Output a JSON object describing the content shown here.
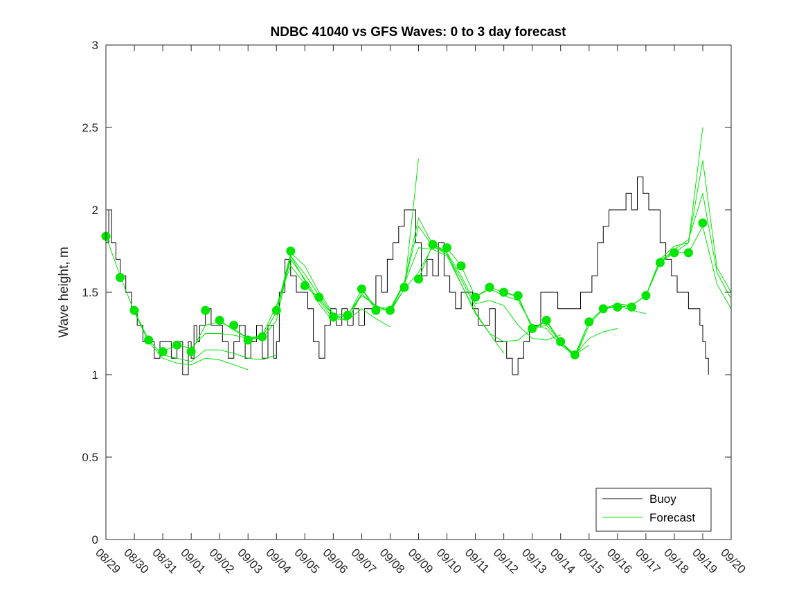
{
  "chart_data": {
    "type": "line",
    "title": "NDBC 41040 vs GFS Waves: 0 to 3 day forecast",
    "xlabel": "",
    "ylabel": "Wave height, m",
    "xlim": [
      0,
      22
    ],
    "ylim": [
      0,
      3
    ],
    "yticks": [
      0,
      0.5,
      1,
      1.5,
      2,
      2.5,
      3
    ],
    "ytick_labels": [
      "0",
      "0.5",
      "1",
      "1.5",
      "2",
      "2.5",
      "3"
    ],
    "xtick_labels": [
      "08/29",
      "08/30",
      "08/31",
      "09/01",
      "09/02",
      "09/03",
      "09/04",
      "09/05",
      "09/06",
      "09/07",
      "09/08",
      "09/09",
      "09/10",
      "09/11",
      "09/12",
      "09/13",
      "09/14",
      "09/15",
      "09/16",
      "09/17",
      "09/18",
      "09/19",
      "09/20"
    ],
    "grid": false,
    "legend": {
      "position": "bottom-right",
      "entries": [
        {
          "label": "Buoy",
          "color": "#000000"
        },
        {
          "label": "Forecast",
          "color": "#00e600"
        }
      ]
    },
    "colors": {
      "buoy": "#000000",
      "forecast": "#00e600"
    },
    "buoy": {
      "t": [
        0,
        0.1,
        0.2,
        0.35,
        0.5,
        0.7,
        0.9,
        1.1,
        1.3,
        1.5,
        1.7,
        1.9,
        2.1,
        2.3,
        2.5,
        2.7,
        2.9,
        3.0,
        3.1,
        3.2,
        3.3,
        3.5,
        3.7,
        3.9,
        4.1,
        4.3,
        4.5,
        4.7,
        4.9,
        5.1,
        5.3,
        5.5,
        5.7,
        5.9,
        6.0,
        6.1,
        6.3,
        6.5,
        6.7,
        6.9,
        7.1,
        7.3,
        7.5,
        7.7,
        7.9,
        8.1,
        8.3,
        8.5,
        8.7,
        8.9,
        9.1,
        9.3,
        9.5,
        9.7,
        9.9,
        10.1,
        10.3,
        10.5,
        10.7,
        10.9,
        11.1,
        11.3,
        11.5,
        11.7,
        11.9,
        12.1,
        12.3,
        12.5,
        12.7,
        12.9,
        13.1,
        13.3,
        13.5,
        13.7,
        13.9,
        14.1,
        14.3,
        14.5,
        14.7,
        14.9,
        15.1,
        15.3,
        15.5,
        15.7,
        15.9,
        16.1,
        16.3,
        16.5,
        16.7,
        16.9,
        17.1,
        17.3,
        17.5,
        17.7,
        17.9,
        18.1,
        18.3,
        18.5,
        18.7,
        18.9,
        19.1,
        19.3,
        19.5,
        19.7,
        19.9,
        20.1,
        20.3,
        20.5,
        20.7,
        20.9,
        21.0,
        21.1,
        21.2
      ],
      "h": [
        1.8,
        2.0,
        1.8,
        1.7,
        1.6,
        1.5,
        1.4,
        1.3,
        1.2,
        1.2,
        1.1,
        1.2,
        1.2,
        1.1,
        1.2,
        1.0,
        1.2,
        1.1,
        1.3,
        1.2,
        1.3,
        1.4,
        1.3,
        1.3,
        1.2,
        1.1,
        1.2,
        1.3,
        1.1,
        1.2,
        1.3,
        1.1,
        1.3,
        1.1,
        1.2,
        1.5,
        1.7,
        1.6,
        1.5,
        1.5,
        1.4,
        1.2,
        1.1,
        1.3,
        1.4,
        1.3,
        1.4,
        1.3,
        1.4,
        1.3,
        1.4,
        1.4,
        1.6,
        1.5,
        1.7,
        1.8,
        1.9,
        2.0,
        2.0,
        1.8,
        1.6,
        1.7,
        1.6,
        1.8,
        1.6,
        1.5,
        1.4,
        1.5,
        1.5,
        1.4,
        1.3,
        1.3,
        1.4,
        1.2,
        1.2,
        1.1,
        1.0,
        1.1,
        1.2,
        1.3,
        1.3,
        1.5,
        1.5,
        1.5,
        1.4,
        1.4,
        1.4,
        1.4,
        1.5,
        1.5,
        1.6,
        1.8,
        1.9,
        2.0,
        2.0,
        2.0,
        2.1,
        2.0,
        2.2,
        2.1,
        2.0,
        2.0,
        1.8,
        1.7,
        1.6,
        1.5,
        1.5,
        1.4,
        1.4,
        1.3,
        1.2,
        1.1,
        1.0
      ]
    },
    "forecast_markers": {
      "t": [
        0,
        0.5,
        1,
        1.5,
        2,
        2.5,
        3,
        3.5,
        4,
        4.5,
        5,
        5.5,
        6,
        6.5,
        7,
        7.5,
        8,
        8.5,
        9,
        9.5,
        10,
        10.5,
        11,
        11.5,
        12,
        12.5,
        13,
        13.5,
        14,
        14.5,
        15,
        15.5,
        16,
        16.5,
        17,
        17.5,
        18,
        18.5,
        19,
        19.5,
        20,
        20.5,
        21
      ],
      "h": [
        1.84,
        1.59,
        1.39,
        1.21,
        1.14,
        1.18,
        1.14,
        1.39,
        1.33,
        1.3,
        1.21,
        1.23,
        1.39,
        1.75,
        1.54,
        1.47,
        1.35,
        1.36,
        1.52,
        1.39,
        1.39,
        1.53,
        1.58,
        1.79,
        1.77,
        1.66,
        1.47,
        1.53,
        1.5,
        1.48,
        1.28,
        1.33,
        1.2,
        1.12,
        1.32,
        1.4,
        1.41,
        1.41,
        1.48,
        1.68,
        1.74,
        1.74,
        1.92
      ]
    },
    "forecast_runs": [
      {
        "t": [
          0,
          0.5,
          1,
          1.5,
          2,
          2.5,
          3,
          3.5,
          4,
          4.5,
          5
        ],
        "h": [
          1.84,
          1.6,
          1.38,
          1.2,
          1.1,
          1.07,
          1.06,
          1.1,
          1.09,
          1.06,
          1.03
        ]
      },
      {
        "t": [
          1,
          1.5,
          2,
          2.5,
          3,
          3.5,
          4,
          4.5,
          5,
          5.5,
          6
        ],
        "h": [
          1.39,
          1.21,
          1.12,
          1.1,
          1.08,
          1.15,
          1.15,
          1.13,
          1.1,
          1.09,
          1.12
        ]
      },
      {
        "t": [
          2,
          2.5,
          3,
          3.5,
          4,
          4.5,
          5,
          5.5,
          6,
          6.5,
          7
        ],
        "h": [
          1.14,
          1.18,
          1.16,
          1.25,
          1.25,
          1.24,
          1.22,
          1.24,
          1.42,
          1.66,
          1.55
        ]
      },
      {
        "t": [
          3,
          3.5,
          4,
          4.5,
          5,
          5.5,
          6,
          6.5,
          7,
          7.5,
          8
        ],
        "h": [
          1.14,
          1.3,
          1.32,
          1.28,
          1.22,
          1.22,
          1.33,
          1.72,
          1.57,
          1.43,
          1.32
        ]
      },
      {
        "t": [
          4,
          4.5,
          5,
          5.5,
          6,
          6.5,
          7,
          7.5,
          8,
          8.5,
          9
        ],
        "h": [
          1.33,
          1.27,
          1.22,
          1.23,
          1.38,
          1.7,
          1.58,
          1.45,
          1.34,
          1.33,
          1.49
        ]
      },
      {
        "t": [
          5,
          5.5,
          6,
          6.5,
          7,
          7.5,
          8,
          8.5,
          9,
          9.5,
          10
        ],
        "h": [
          1.21,
          1.23,
          1.38,
          1.72,
          1.61,
          1.48,
          1.36,
          1.33,
          1.4,
          1.34,
          1.29
        ]
      },
      {
        "t": [
          6,
          6.5,
          7,
          7.5,
          8,
          8.5,
          9,
          9.5,
          10,
          10.5,
          11
        ],
        "h": [
          1.39,
          1.74,
          1.66,
          1.5,
          1.37,
          1.36,
          1.48,
          1.42,
          1.38,
          1.52,
          2.31
        ]
      },
      {
        "t": [
          7,
          7.5,
          8,
          8.5,
          9,
          9.5,
          10,
          10.5,
          11,
          11.5,
          12
        ],
        "h": [
          1.54,
          1.46,
          1.36,
          1.35,
          1.52,
          1.41,
          1.4,
          1.56,
          1.95,
          1.79,
          1.75
        ]
      },
      {
        "t": [
          8,
          8.5,
          9,
          9.5,
          10,
          10.5,
          11,
          11.5,
          12,
          12.5,
          13
        ],
        "h": [
          1.35,
          1.36,
          1.49,
          1.41,
          1.39,
          1.55,
          1.9,
          1.78,
          1.73,
          1.58,
          1.41
        ]
      },
      {
        "t": [
          9,
          9.5,
          10,
          10.5,
          11,
          11.5,
          12,
          12.5,
          13,
          13.5,
          14
        ],
        "h": [
          1.52,
          1.39,
          1.4,
          1.55,
          1.77,
          1.76,
          1.72,
          1.55,
          1.37,
          1.25,
          1.13
        ]
      },
      {
        "t": [
          10,
          10.5,
          11,
          11.5,
          12,
          12.5,
          13,
          13.5,
          14,
          14.5,
          15
        ],
        "h": [
          1.39,
          1.52,
          1.62,
          1.78,
          1.74,
          1.55,
          1.38,
          1.25,
          1.2,
          1.21,
          1.28
        ]
      },
      {
        "t": [
          11,
          11.5,
          12,
          12.5,
          13,
          13.5,
          14,
          14.5,
          15,
          15.5,
          16
        ],
        "h": [
          1.58,
          1.79,
          1.74,
          1.6,
          1.43,
          1.45,
          1.42,
          1.3,
          1.22,
          1.21,
          1.24
        ]
      },
      {
        "t": [
          12,
          12.5,
          13,
          13.5,
          14,
          14.5,
          15,
          15.5,
          16,
          16.5,
          17
        ],
        "h": [
          1.77,
          1.66,
          1.47,
          1.52,
          1.48,
          1.45,
          1.3,
          1.28,
          1.18,
          1.12,
          1.18
        ]
      },
      {
        "t": [
          13,
          13.5,
          14,
          14.5,
          15,
          15.5,
          16,
          16.5,
          17,
          17.5,
          18
        ],
        "h": [
          1.47,
          1.53,
          1.5,
          1.47,
          1.28,
          1.3,
          1.2,
          1.12,
          1.22,
          1.26,
          1.28
        ]
      },
      {
        "t": [
          14,
          14.5,
          15,
          15.5,
          16,
          16.5,
          17,
          17.5,
          18,
          18.5,
          19
        ],
        "h": [
          1.5,
          1.48,
          1.28,
          1.32,
          1.2,
          1.1,
          1.3,
          1.4,
          1.42,
          1.39,
          1.37
        ]
      },
      {
        "t": [
          15,
          15.5,
          16,
          16.5,
          17,
          17.5,
          18,
          18.5,
          19,
          19.5,
          20
        ],
        "h": [
          1.28,
          1.33,
          1.2,
          1.11,
          1.32,
          1.4,
          1.41,
          1.42,
          1.48,
          1.68,
          1.76
        ]
      },
      {
        "t": [
          16,
          16.5,
          17,
          17.5,
          18,
          18.5,
          19,
          19.5,
          20,
          20.5,
          21
        ],
        "h": [
          1.2,
          1.12,
          1.32,
          1.4,
          1.43,
          1.42,
          1.48,
          1.7,
          1.78,
          1.8,
          2.5
        ]
      },
      {
        "t": [
          17,
          17.5,
          18,
          18.5,
          19,
          19.5,
          20,
          20.5,
          21,
          21.5,
          22
        ],
        "h": [
          1.32,
          1.4,
          1.41,
          1.42,
          1.48,
          1.7,
          1.74,
          1.8,
          2.3,
          1.65,
          1.5
        ]
      },
      {
        "t": [
          18,
          18.5,
          19,
          19.5,
          20,
          20.5,
          21,
          21.5,
          22
        ],
        "h": [
          1.41,
          1.42,
          1.48,
          1.68,
          1.76,
          1.82,
          2.1,
          1.62,
          1.46
        ]
      },
      {
        "t": [
          19,
          19.5,
          20,
          20.5,
          21,
          21.5,
          22
        ],
        "h": [
          1.48,
          1.68,
          1.74,
          1.74,
          1.9,
          1.55,
          1.4
        ]
      }
    ]
  }
}
